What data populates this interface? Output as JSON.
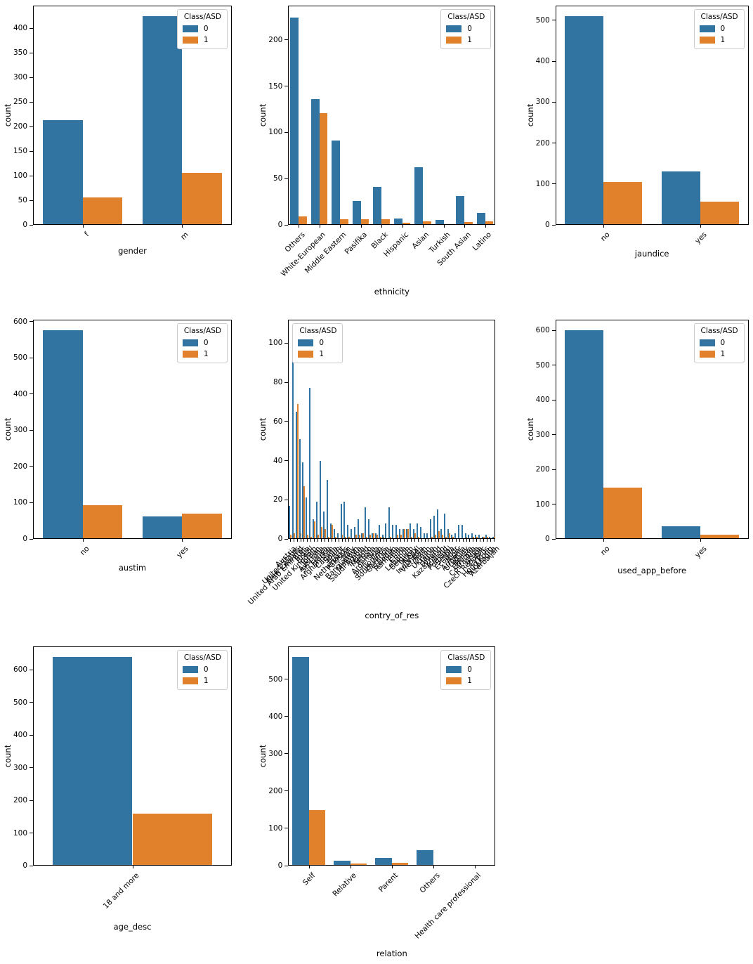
{
  "figure": {
    "background": "#ffffff",
    "legend_title": "Class/ASD",
    "series_labels": [
      "0",
      "1"
    ],
    "colors": {
      "class0": "#3274a1",
      "class1": "#e1812c"
    }
  },
  "chart_data": [
    {
      "type": "bar",
      "key": "gender",
      "xlabel": "gender",
      "ylabel": "count",
      "categories": [
        "f",
        "m"
      ],
      "series": [
        {
          "name": "0",
          "values": [
            213,
            425
          ]
        },
        {
          "name": "1",
          "values": [
            56,
            106
          ]
        }
      ],
      "ylim": [
        0,
        446
      ],
      "yticks": [
        0,
        50,
        100,
        150,
        200,
        250,
        300,
        350,
        400
      ],
      "legend_loc": "right",
      "grid": false,
      "xlabel_offset": 30
    },
    {
      "type": "bar",
      "key": "ethnicity",
      "xlabel": "ethnicity",
      "ylabel": "count",
      "categories": [
        "Others",
        "White-European",
        "Middle Eastern",
        "Pasifika",
        "Black",
        "Hispanic",
        "Asian",
        "Turkish",
        "South Asian",
        "Latino"
      ],
      "series": [
        {
          "name": "0",
          "values": [
            224,
            136,
            91,
            26,
            41,
            7,
            62,
            5,
            31,
            13
          ]
        },
        {
          "name": "1",
          "values": [
            9,
            121,
            6,
            6,
            6,
            2,
            4,
            1,
            3,
            4
          ]
        }
      ],
      "ylim": [
        0,
        237
      ],
      "yticks": [
        0,
        50,
        100,
        150,
        200
      ],
      "legend_loc": "right",
      "grid": false,
      "xlabel_offset": 88
    },
    {
      "type": "bar",
      "key": "jaundice",
      "xlabel": "jaundice",
      "ylabel": "count",
      "categories": [
        "no",
        "yes"
      ],
      "series": [
        {
          "name": "0",
          "values": [
            510,
            130
          ]
        },
        {
          "name": "1",
          "values": [
            105,
            56
          ]
        }
      ],
      "ylim": [
        0,
        536
      ],
      "yticks": [
        0,
        100,
        200,
        300,
        400,
        500
      ],
      "legend_loc": "right",
      "grid": false,
      "xlabel_offset": 34
    },
    {
      "type": "bar",
      "key": "austim",
      "xlabel": "austim",
      "ylabel": "count",
      "categories": [
        "no",
        "yes"
      ],
      "series": [
        {
          "name": "0",
          "values": [
            576,
            62
          ]
        },
        {
          "name": "1",
          "values": [
            93,
            70
          ]
        }
      ],
      "ylim": [
        0,
        605
      ],
      "yticks": [
        0,
        100,
        200,
        300,
        400,
        500,
        600
      ],
      "legend_loc": "right",
      "grid": false,
      "xlabel_offset": 34
    },
    {
      "type": "bar",
      "key": "contry_of_res",
      "xlabel": "contry_of_res",
      "ylabel": "count",
      "categories": [
        "Austria",
        "United States",
        "New Zealand",
        "United Arab Emirates",
        "India",
        "Brazil",
        "United Kingdom",
        "Jordan",
        "Australia",
        "Sri Lanka",
        "France",
        "Afghanistan",
        "Canada",
        "Spain",
        "Egypt",
        "Netherlands",
        "Pakistan",
        "Italy",
        "Bangladesh",
        "Malaysia",
        "Saudi Arabia",
        "Ireland",
        "Mexico",
        "Russia",
        "Argentina",
        "Iran",
        "Philippines",
        "South Africa",
        "Germany",
        "Sweden",
        "Romania",
        "Chile",
        "China",
        "Lebanon",
        "Belgium",
        "Turkey",
        "Nepal",
        "Indonesia",
        "Viet Nam",
        "Oman",
        "Ukraine",
        "Japan",
        "Finland",
        "Kazakhstan",
        "Iceland",
        "Portugal",
        "Serbia",
        "Ecuador",
        "Niger",
        "Armenia",
        "Uruguay",
        "Bolivia",
        "Ethiopia",
        "Costa Rica",
        "Aruba",
        "Czech Republic",
        "Cyprus",
        "Hong Kong",
        "Nicaragua",
        "Azerbaijan"
      ],
      "series": [
        {
          "name": "0",
          "values": [
            17,
            91,
            65,
            51,
            39,
            21,
            77,
            10,
            19,
            40,
            14,
            30,
            8,
            5,
            3,
            18,
            19,
            7,
            5,
            6,
            10,
            3,
            16,
            10,
            3,
            3,
            7,
            2,
            8,
            16,
            7,
            7,
            5,
            5,
            5,
            8,
            5,
            8,
            6,
            3,
            3,
            10,
            12,
            15,
            5,
            13,
            5,
            2,
            3,
            7,
            7,
            3,
            2,
            3,
            2,
            2,
            1,
            2,
            1,
            1
          ]
        },
        {
          "name": "1",
          "values": [
            2,
            3,
            69,
            3,
            27,
            2,
            1,
            9,
            2,
            6,
            5,
            1,
            7,
            1,
            0,
            2,
            1,
            1,
            0,
            2,
            2,
            3,
            1,
            2,
            3,
            2,
            1,
            1,
            0,
            1,
            0,
            2,
            2,
            5,
            5,
            1,
            3,
            1,
            0,
            0,
            0,
            1,
            2,
            4,
            2,
            1,
            3,
            1,
            0,
            0,
            0,
            1,
            0,
            1,
            1,
            0,
            1,
            1,
            0,
            1
          ]
        }
      ],
      "ylim": [
        0,
        112
      ],
      "yticks": [
        0,
        20,
        40,
        60,
        80,
        100
      ],
      "legend_loc": "left",
      "grid": false,
      "xlabel_offset": 102
    },
    {
      "type": "bar",
      "key": "used_app_before",
      "xlabel": "used_app_before",
      "ylabel": "count",
      "categories": [
        "no",
        "yes"
      ],
      "series": [
        {
          "name": "0",
          "values": [
            601,
            36
          ]
        },
        {
          "name": "1",
          "values": [
            148,
            12
          ]
        }
      ],
      "ylim": [
        0,
        631
      ],
      "yticks": [
        0,
        100,
        200,
        300,
        400,
        500,
        600
      ],
      "legend_loc": "right",
      "grid": false,
      "xlabel_offset": 38
    },
    {
      "type": "bar",
      "key": "age_desc",
      "xlabel": "age_desc",
      "ylabel": "count",
      "categories": [
        "18 and more"
      ],
      "series": [
        {
          "name": "0",
          "values": [
            639
          ]
        },
        {
          "name": "1",
          "values": [
            160
          ]
        }
      ],
      "ylim": [
        0,
        671
      ],
      "yticks": [
        0,
        100,
        200,
        300,
        400,
        500,
        600
      ],
      "legend_loc": "right",
      "grid": false,
      "xlabel_offset": 80
    },
    {
      "type": "bar",
      "key": "relation",
      "xlabel": "relation",
      "ylabel": "count",
      "categories": [
        "Self",
        "Relative",
        "Parent",
        "Others",
        "Health care professional"
      ],
      "series": [
        {
          "name": "0",
          "values": [
            560,
            14,
            21,
            42,
            2
          ]
        },
        {
          "name": "1",
          "values": [
            148,
            5,
            8,
            2,
            1
          ]
        }
      ],
      "ylim": [
        0,
        588
      ],
      "yticks": [
        0,
        100,
        200,
        300,
        400,
        500
      ],
      "legend_loc": "right",
      "grid": false,
      "xlabel_offset": 118
    }
  ]
}
